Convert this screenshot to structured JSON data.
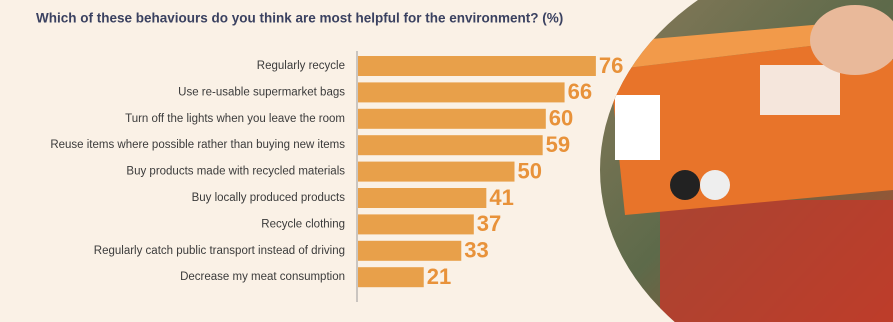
{
  "chart_data": {
    "type": "bar",
    "orientation": "horizontal",
    "title": "Which of these behaviours do you think are most helpful for the environment? (%)",
    "categories": [
      "Regularly recycle",
      "Use re-usable supermarket bags",
      "Turn off the lights when you leave the room",
      "Reuse items where possible rather than buying new items",
      "Buy products made with recycled materials",
      "Buy locally produced products",
      "Recycle clothing",
      "Regularly catch public transport instead of driving",
      "Decrease my meat consumption"
    ],
    "values": [
      76,
      66,
      60,
      59,
      50,
      41,
      37,
      33,
      21
    ],
    "color": "#e8a04a",
    "label_color": "#e8923a"
  }
}
